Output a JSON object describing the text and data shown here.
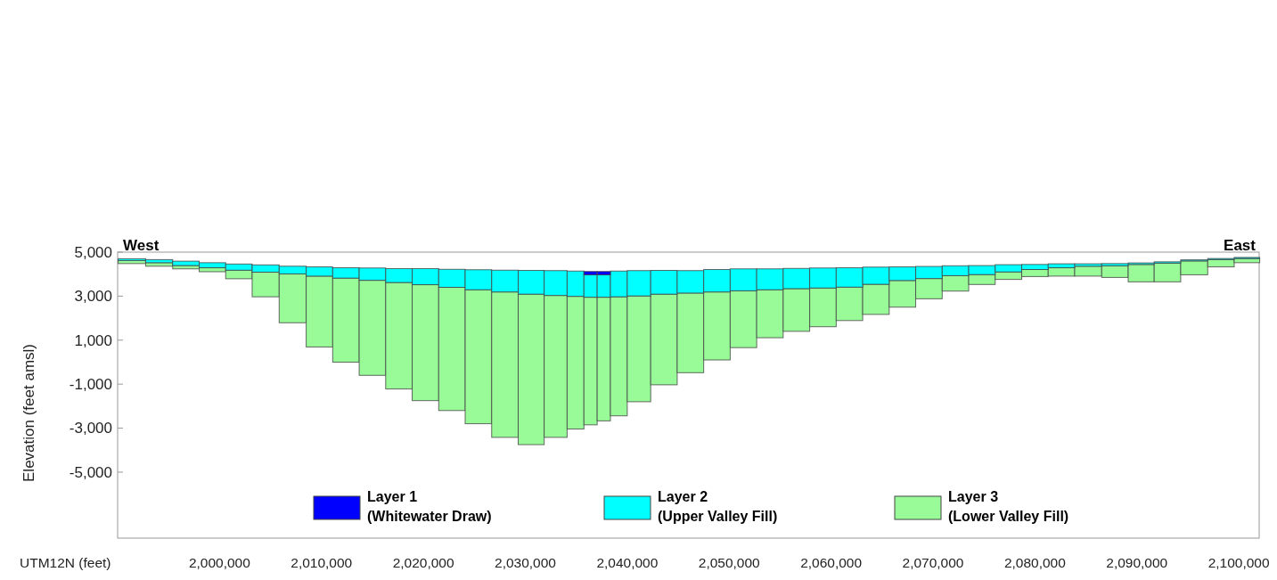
{
  "chart_data": {
    "type": "bar",
    "xlabel": "UTM12N (feet)",
    "ylabel": "Elevation (feet amsl)",
    "annotations": [
      "West",
      "East"
    ],
    "x": [
      1991400,
      1994100,
      1996700,
      1999300,
      2001900,
      2004500,
      2007200,
      2009800,
      2012400,
      2015000,
      2017600,
      2020200,
      2022800,
      2025400,
      2028000,
      2030600,
      2033100,
      2035100,
      2036400,
      2037700,
      2039000,
      2041000,
      2043600,
      2046200,
      2048800,
      2051400,
      2054000,
      2056600,
      2059200,
      2061800,
      2064400,
      2067000,
      2069600,
      2072200,
      2074800,
      2077400,
      2080000,
      2082600,
      2085200,
      2087900,
      2090400,
      2093000,
      2095600,
      2098300,
      2100800
    ],
    "series": [
      {
        "name": "Layer 3 (Lower Valley Fill)",
        "color": "#98fb98",
        "base": [
          4480,
          4360,
          4240,
          4110,
          3790,
          2970,
          1790,
          690,
          0,
          -600,
          -1220,
          -1750,
          -2200,
          -2800,
          -3420,
          -3750,
          -3420,
          -3040,
          -2850,
          -2670,
          -2440,
          -1800,
          -1030,
          -480,
          100,
          660,
          1110,
          1400,
          1610,
          1890,
          2170,
          2500,
          2880,
          3230,
          3530,
          3760,
          3890,
          3910,
          3910,
          3850,
          3650,
          3650,
          3970,
          4330,
          4520
        ],
        "values": [
          140,
          160,
          150,
          180,
          390,
          1120,
          2220,
          3220,
          3820,
          4320,
          4840,
          5270,
          5600,
          6090,
          6610,
          6840,
          6450,
          6030,
          5800,
          5620,
          5410,
          4810,
          4120,
          3620,
          3090,
          2580,
          2180,
          1940,
          1760,
          1520,
          1370,
          1210,
          920,
          700,
          450,
          340,
          320,
          380,
          450,
          530,
          790,
          850,
          630,
          330,
          190
        ]
      },
      {
        "name": "Layer 2 (Upper Valley Fill)",
        "color": "#00ffff",
        "base": [
          4620,
          4520,
          4390,
          4290,
          4180,
          4090,
          4010,
          3910,
          3820,
          3720,
          3620,
          3520,
          3400,
          3290,
          3190,
          3090,
          3030,
          2990,
          2950,
          2950,
          2970,
          3010,
          3090,
          3140,
          3190,
          3240,
          3290,
          3340,
          3370,
          3410,
          3540,
          3710,
          3800,
          3930,
          3980,
          4100,
          4210,
          4290,
          4360,
          4380,
          4440,
          4500,
          4600,
          4660,
          4710
        ],
        "values": [
          80,
          140,
          200,
          230,
          280,
          330,
          350,
          420,
          470,
          560,
          630,
          730,
          820,
          910,
          990,
          1080,
          1130,
          1150,
          1020,
          1020,
          1170,
          1150,
          1080,
          1020,
          1020,
          1000,
          950,
          920,
          910,
          880,
          780,
          620,
          550,
          450,
          410,
          330,
          230,
          180,
          110,
          100,
          70,
          60,
          50,
          50,
          50
        ]
      },
      {
        "name": "Layer 1 (Whitewater Draw)",
        "color": "#0000ff",
        "base": [
          null,
          null,
          null,
          null,
          null,
          null,
          null,
          null,
          null,
          null,
          null,
          null,
          null,
          null,
          null,
          null,
          null,
          null,
          3970,
          3970,
          null,
          null,
          null,
          null,
          null,
          null,
          null,
          null,
          null,
          null,
          null,
          null,
          null,
          null,
          null,
          null,
          null,
          null,
          null,
          null,
          null,
          null,
          null,
          null,
          null
        ],
        "values": [
          null,
          null,
          null,
          null,
          null,
          null,
          null,
          null,
          null,
          null,
          null,
          null,
          null,
          null,
          null,
          null,
          null,
          null,
          150,
          150,
          null,
          null,
          null,
          null,
          null,
          null,
          null,
          null,
          null,
          null,
          null,
          null,
          null,
          null,
          null,
          null,
          null,
          null,
          null,
          null,
          null,
          null,
          null,
          null,
          null
        ]
      }
    ],
    "xlim": [
      1990000,
      2102000
    ],
    "xticks": [
      {
        "value": 2000000,
        "label": "2,000,000"
      },
      {
        "value": 2010000,
        "label": "2,010,000"
      },
      {
        "value": 2020000,
        "label": "2,020,000"
      },
      {
        "value": 2030000,
        "label": "2,030,000"
      },
      {
        "value": 2040000,
        "label": "2,040,000"
      },
      {
        "value": 2050000,
        "label": "2,050,000"
      },
      {
        "value": 2060000,
        "label": "2,060,000"
      },
      {
        "value": 2070000,
        "label": "2,070,000"
      },
      {
        "value": 2080000,
        "label": "2,080,000"
      },
      {
        "value": 2090000,
        "label": "2,090,000"
      },
      {
        "value": 2100000,
        "label": "2,100,000"
      }
    ],
    "ylim": [
      -8000,
      5000
    ],
    "yticks": [
      {
        "value": 5000,
        "label": "5,000"
      },
      {
        "value": 3000,
        "label": "3,000"
      },
      {
        "value": 1000,
        "label": "1,000"
      },
      {
        "value": -1000,
        "label": "-1,000"
      },
      {
        "value": -3000,
        "label": "-3,000"
      },
      {
        "value": -5000,
        "label": "-5,000"
      }
    ],
    "grid": false,
    "legend": "bottom"
  }
}
